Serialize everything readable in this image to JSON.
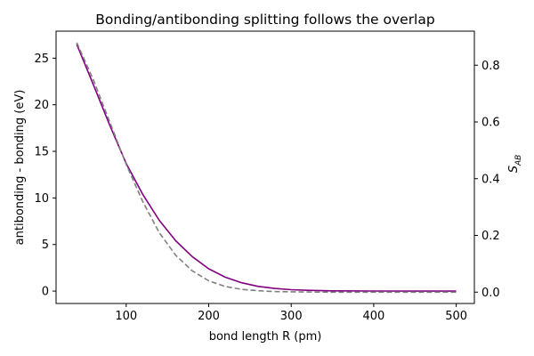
{
  "chart_data": {
    "type": "line",
    "title": "Bonding/antibonding splitting follows the overlap",
    "xlabel": "bond length R (pm)",
    "ylabel_left": "antibonding - bonding (eV)",
    "ylabel_right_main": "S",
    "ylabel_right_sub": "AB",
    "xlim": [
      15,
      522
    ],
    "ylim_left": [
      -1.33,
      27.9
    ],
    "ylim_right": [
      -0.04,
      0.92
    ],
    "xticks": [
      "100",
      "200",
      "300",
      "400",
      "500"
    ],
    "yticks_left": [
      "0",
      "5",
      "10",
      "15",
      "20",
      "25"
    ],
    "yticks_right": [
      "0.0",
      "0.2",
      "0.4",
      "0.6",
      "0.8"
    ],
    "grid": false,
    "legend": "none",
    "series": [
      {
        "axis": "left",
        "color": "#800080",
        "style": "solid",
        "x": [
          40,
          60,
          80,
          100,
          120,
          140,
          160,
          180,
          200,
          220,
          240,
          260,
          280,
          300,
          320,
          350,
          400,
          450,
          500
        ],
        "values": [
          26.5,
          22.2,
          17.8,
          13.7,
          10.4,
          7.6,
          5.4,
          3.7,
          2.4,
          1.5,
          0.9,
          0.5,
          0.28,
          0.15,
          0.08,
          0.03,
          0.01,
          0.0,
          0.0
        ]
      },
      {
        "axis": "right",
        "color": "#808080",
        "style": "dashed",
        "x": [
          40,
          60,
          80,
          100,
          120,
          140,
          160,
          180,
          200,
          220,
          240,
          260,
          280,
          300,
          320,
          350,
          400,
          450,
          500
        ],
        "values": [
          0.88,
          0.75,
          0.6,
          0.45,
          0.32,
          0.21,
          0.13,
          0.075,
          0.04,
          0.02,
          0.01,
          0.005,
          0.002,
          0.001,
          0.0005,
          0.0,
          0.0,
          0.0,
          0.0
        ]
      }
    ]
  }
}
